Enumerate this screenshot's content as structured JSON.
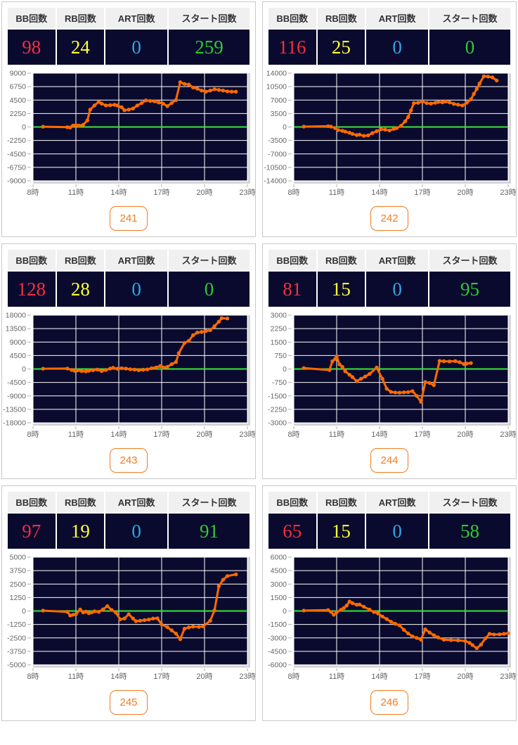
{
  "table_headers": {
    "bb": "BB回数",
    "rb": "RB回数",
    "art": "ART回数",
    "start": "スタート回数"
  },
  "colors": {
    "bb": "#f2303c",
    "rb": "#ffff35",
    "art": "#2ea7e8",
    "start": "#2ecc2e",
    "chart_bg": "#0a0a2e",
    "grid": "#ffffff",
    "zero_line": "#39e639",
    "series_line": "#ff6a00",
    "axis_text": "#666666",
    "badge": "#f47b20"
  },
  "panels": [
    {
      "machine": "241",
      "stats": {
        "bb": "98",
        "rb": "24",
        "art": "0",
        "start": "259"
      },
      "chart_data": {
        "type": "line",
        "title": "",
        "xlabel": "",
        "ylabel": "",
        "x_ticks": [
          "8時",
          "11時",
          "14時",
          "17時",
          "20時",
          "23時"
        ],
        "x_tick_values": [
          8,
          11,
          14,
          17,
          20,
          23
        ],
        "x_range": [
          8,
          23
        ],
        "ylim": [
          -9000,
          9000
        ],
        "y_step": 2250,
        "grid": true,
        "legend": "none",
        "points": [
          [
            8.7,
            50
          ],
          [
            10.4,
            -30
          ],
          [
            10.6,
            -80
          ],
          [
            10.8,
            250
          ],
          [
            11.0,
            300
          ],
          [
            11.2,
            250
          ],
          [
            11.5,
            350
          ],
          [
            11.8,
            1100
          ],
          [
            12.0,
            2900
          ],
          [
            12.3,
            3600
          ],
          [
            12.6,
            4200
          ],
          [
            12.8,
            3900
          ],
          [
            13.1,
            3600
          ],
          [
            13.4,
            3650
          ],
          [
            13.7,
            3700
          ],
          [
            13.9,
            3600
          ],
          [
            14.2,
            3300
          ],
          [
            14.4,
            2800
          ],
          [
            14.7,
            2900
          ],
          [
            15.0,
            3100
          ],
          [
            15.3,
            3600
          ],
          [
            15.6,
            4000
          ],
          [
            15.9,
            4450
          ],
          [
            16.2,
            4350
          ],
          [
            16.5,
            4300
          ],
          [
            16.8,
            4100
          ],
          [
            17.1,
            3900
          ],
          [
            17.4,
            3500
          ],
          [
            17.7,
            4000
          ],
          [
            18.0,
            4500
          ],
          [
            18.3,
            7500
          ],
          [
            18.6,
            7200
          ],
          [
            18.9,
            7100
          ],
          [
            19.2,
            6600
          ],
          [
            19.5,
            6400
          ],
          [
            19.8,
            6100
          ],
          [
            20.1,
            5900
          ],
          [
            20.4,
            6100
          ],
          [
            20.7,
            6300
          ],
          [
            21.0,
            6200
          ],
          [
            21.3,
            6100
          ],
          [
            21.6,
            5950
          ],
          [
            21.9,
            5900
          ],
          [
            22.2,
            5900
          ]
        ]
      }
    },
    {
      "machine": "242",
      "stats": {
        "bb": "116",
        "rb": "25",
        "art": "0",
        "start": "0"
      },
      "chart_data": {
        "type": "line",
        "title": "",
        "xlabel": "",
        "ylabel": "",
        "x_ticks": [
          "8時",
          "11時",
          "14時",
          "17時",
          "20時",
          "23時"
        ],
        "x_tick_values": [
          8,
          11,
          14,
          17,
          20,
          23
        ],
        "x_range": [
          8,
          23
        ],
        "ylim": [
          -14000,
          14000
        ],
        "y_step": 3500,
        "grid": true,
        "legend": "none",
        "points": [
          [
            8.7,
            100
          ],
          [
            10.4,
            200
          ],
          [
            10.6,
            100
          ],
          [
            10.9,
            -300
          ],
          [
            11.1,
            -800
          ],
          [
            11.4,
            -1000
          ],
          [
            11.6,
            -1200
          ],
          [
            11.9,
            -1500
          ],
          [
            12.1,
            -1800
          ],
          [
            12.4,
            -2100
          ],
          [
            12.6,
            -2000
          ],
          [
            12.9,
            -2300
          ],
          [
            13.2,
            -2200
          ],
          [
            13.5,
            -1600
          ],
          [
            13.8,
            -1100
          ],
          [
            14.1,
            -600
          ],
          [
            14.4,
            -700
          ],
          [
            14.7,
            -900
          ],
          [
            15.0,
            -500
          ],
          [
            15.2,
            -300
          ],
          [
            15.5,
            300
          ],
          [
            15.8,
            1500
          ],
          [
            16.0,
            2600
          ],
          [
            16.2,
            4300
          ],
          [
            16.4,
            6200
          ],
          [
            16.7,
            6300
          ],
          [
            17.0,
            6600
          ],
          [
            17.3,
            6200
          ],
          [
            17.6,
            6100
          ],
          [
            17.9,
            6300
          ],
          [
            18.1,
            6500
          ],
          [
            18.4,
            6400
          ],
          [
            18.6,
            6600
          ],
          [
            18.9,
            6400
          ],
          [
            19.2,
            6000
          ],
          [
            19.5,
            5800
          ],
          [
            19.8,
            5600
          ],
          [
            20.1,
            6300
          ],
          [
            20.4,
            7200
          ],
          [
            20.6,
            8600
          ],
          [
            20.8,
            9900
          ],
          [
            21.0,
            11300
          ],
          [
            21.3,
            13200
          ],
          [
            21.6,
            13100
          ],
          [
            21.9,
            12900
          ],
          [
            22.2,
            12100
          ]
        ]
      }
    },
    {
      "machine": "243",
      "stats": {
        "bb": "128",
        "rb": "28",
        "art": "0",
        "start": "0"
      },
      "chart_data": {
        "type": "line",
        "title": "",
        "xlabel": "",
        "ylabel": "",
        "x_ticks": [
          "8時",
          "11時",
          "14時",
          "17時",
          "20時",
          "23時"
        ],
        "x_tick_values": [
          8,
          11,
          14,
          17,
          20,
          23
        ],
        "x_range": [
          8,
          23
        ],
        "ylim": [
          -18000,
          18000
        ],
        "y_step": 4500,
        "grid": true,
        "legend": "none",
        "points": [
          [
            8.7,
            100
          ],
          [
            10.4,
            150
          ],
          [
            10.7,
            -300
          ],
          [
            10.9,
            -600
          ],
          [
            11.1,
            -500
          ],
          [
            11.4,
            -700
          ],
          [
            11.7,
            -800
          ],
          [
            11.9,
            -600
          ],
          [
            12.2,
            -400
          ],
          [
            12.5,
            -200
          ],
          [
            12.8,
            -700
          ],
          [
            13.1,
            -300
          ],
          [
            13.4,
            150
          ],
          [
            13.6,
            400
          ],
          [
            13.9,
            100
          ],
          [
            14.2,
            250
          ],
          [
            14.5,
            150
          ],
          [
            14.8,
            -100
          ],
          [
            15.1,
            -200
          ],
          [
            15.4,
            -400
          ],
          [
            15.7,
            -250
          ],
          [
            16.0,
            -150
          ],
          [
            16.3,
            250
          ],
          [
            16.6,
            500
          ],
          [
            16.9,
            1000
          ],
          [
            17.1,
            550
          ],
          [
            17.4,
            700
          ],
          [
            17.7,
            1600
          ],
          [
            18.0,
            2300
          ],
          [
            18.2,
            5300
          ],
          [
            18.6,
            8700
          ],
          [
            18.9,
            9400
          ],
          [
            19.2,
            11300
          ],
          [
            19.5,
            12200
          ],
          [
            19.8,
            12400
          ],
          [
            20.1,
            12700
          ],
          [
            20.4,
            13000
          ],
          [
            20.7,
            14300
          ],
          [
            21.0,
            15800
          ],
          [
            21.2,
            17000
          ],
          [
            21.6,
            16900
          ]
        ]
      }
    },
    {
      "machine": "244",
      "stats": {
        "bb": "81",
        "rb": "15",
        "art": "0",
        "start": "95"
      },
      "chart_data": {
        "type": "line",
        "title": "",
        "xlabel": "",
        "ylabel": "",
        "x_ticks": [
          "8時",
          "11時",
          "14時",
          "17時",
          "20時",
          "23時"
        ],
        "x_tick_values": [
          8,
          11,
          14,
          17,
          20,
          23
        ],
        "x_range": [
          8,
          23
        ],
        "ylim": [
          -3000,
          3000
        ],
        "y_step": 750,
        "grid": true,
        "legend": "none",
        "points": [
          [
            8.7,
            50
          ],
          [
            10.5,
            -60
          ],
          [
            10.7,
            430
          ],
          [
            10.9,
            560
          ],
          [
            11.0,
            700
          ],
          [
            11.2,
            250
          ],
          [
            11.4,
            120
          ],
          [
            11.6,
            -130
          ],
          [
            11.9,
            -320
          ],
          [
            12.1,
            -450
          ],
          [
            12.4,
            -680
          ],
          [
            12.7,
            -550
          ],
          [
            13.0,
            -420
          ],
          [
            13.3,
            -280
          ],
          [
            13.8,
            80
          ],
          [
            14.2,
            -550
          ],
          [
            14.5,
            -1100
          ],
          [
            14.8,
            -1280
          ],
          [
            15.1,
            -1310
          ],
          [
            15.4,
            -1320
          ],
          [
            15.7,
            -1300
          ],
          [
            16.0,
            -1290
          ],
          [
            16.3,
            -1230
          ],
          [
            16.6,
            -1500
          ],
          [
            16.9,
            -1830
          ],
          [
            17.2,
            -730
          ],
          [
            17.5,
            -780
          ],
          [
            17.8,
            -900
          ],
          [
            18.2,
            450
          ],
          [
            18.5,
            430
          ],
          [
            18.9,
            420
          ],
          [
            19.3,
            440
          ],
          [
            19.6,
            380
          ],
          [
            19.9,
            270
          ],
          [
            20.1,
            300
          ],
          [
            20.4,
            330
          ]
        ]
      }
    },
    {
      "machine": "245",
      "stats": {
        "bb": "97",
        "rb": "19",
        "art": "0",
        "start": "91"
      },
      "chart_data": {
        "type": "line",
        "title": "",
        "xlabel": "",
        "ylabel": "",
        "x_ticks": [
          "8時",
          "11時",
          "14時",
          "17時",
          "20時",
          "23時"
        ],
        "x_tick_values": [
          8,
          11,
          14,
          17,
          20,
          23
        ],
        "x_range": [
          8,
          23
        ],
        "ylim": [
          -5000,
          5000
        ],
        "y_step": 1250,
        "grid": true,
        "legend": "none",
        "points": [
          [
            8.7,
            30
          ],
          [
            10.4,
            -80
          ],
          [
            10.6,
            -420
          ],
          [
            10.8,
            -350
          ],
          [
            11.0,
            -300
          ],
          [
            11.3,
            140
          ],
          [
            11.5,
            -130
          ],
          [
            11.7,
            -60
          ],
          [
            11.9,
            -200
          ],
          [
            12.1,
            -130
          ],
          [
            12.3,
            -30
          ],
          [
            12.6,
            -80
          ],
          [
            12.9,
            150
          ],
          [
            13.2,
            450
          ],
          [
            13.5,
            100
          ],
          [
            13.8,
            -150
          ],
          [
            14.1,
            -780
          ],
          [
            14.4,
            -700
          ],
          [
            14.7,
            -300
          ],
          [
            15.0,
            -700
          ],
          [
            15.2,
            -950
          ],
          [
            15.5,
            -900
          ],
          [
            15.8,
            -850
          ],
          [
            16.1,
            -800
          ],
          [
            16.4,
            -700
          ],
          [
            16.7,
            -680
          ],
          [
            17.0,
            -1250
          ],
          [
            17.4,
            -1500
          ],
          [
            17.7,
            -1800
          ],
          [
            18.0,
            -2100
          ],
          [
            18.3,
            -2620
          ],
          [
            18.6,
            -1650
          ],
          [
            18.9,
            -1520
          ],
          [
            19.2,
            -1450
          ],
          [
            19.6,
            -1480
          ],
          [
            19.9,
            -1430
          ],
          [
            20.4,
            -900
          ],
          [
            20.7,
            60
          ],
          [
            21.0,
            2300
          ],
          [
            21.3,
            2900
          ],
          [
            21.6,
            3250
          ],
          [
            22.2,
            3400
          ]
        ]
      }
    },
    {
      "machine": "246",
      "stats": {
        "bb": "65",
        "rb": "15",
        "art": "0",
        "start": "58"
      },
      "chart_data": {
        "type": "line",
        "title": "",
        "xlabel": "",
        "ylabel": "",
        "x_ticks": [
          "8時",
          "11時",
          "14時",
          "17時",
          "20時",
          "23時"
        ],
        "x_tick_values": [
          8,
          11,
          14,
          17,
          20,
          23
        ],
        "x_range": [
          8,
          23
        ],
        "ylim": [
          -6000,
          6000
        ],
        "y_step": 1500,
        "grid": true,
        "legend": "none",
        "points": [
          [
            8.7,
            50
          ],
          [
            10.4,
            100
          ],
          [
            10.6,
            -100
          ],
          [
            10.8,
            -420
          ],
          [
            11.0,
            -150
          ],
          [
            11.3,
            130
          ],
          [
            11.5,
            330
          ],
          [
            11.7,
            600
          ],
          [
            11.9,
            1050
          ],
          [
            12.1,
            880
          ],
          [
            12.4,
            700
          ],
          [
            12.6,
            720
          ],
          [
            12.9,
            480
          ],
          [
            13.3,
            150
          ],
          [
            13.6,
            -120
          ],
          [
            13.9,
            -280
          ],
          [
            14.2,
            -620
          ],
          [
            14.5,
            -900
          ],
          [
            14.8,
            -1200
          ],
          [
            15.1,
            -1430
          ],
          [
            15.4,
            -1600
          ],
          [
            15.7,
            -2100
          ],
          [
            16.0,
            -2500
          ],
          [
            16.3,
            -2830
          ],
          [
            16.6,
            -3000
          ],
          [
            16.9,
            -3200
          ],
          [
            17.2,
            -2050
          ],
          [
            17.5,
            -2400
          ],
          [
            17.8,
            -2700
          ],
          [
            18.1,
            -2950
          ],
          [
            18.5,
            -3200
          ],
          [
            19.0,
            -3250
          ],
          [
            19.5,
            -3280
          ],
          [
            20.0,
            -3350
          ],
          [
            20.3,
            -3550
          ],
          [
            20.5,
            -3800
          ],
          [
            20.8,
            -4150
          ],
          [
            21.1,
            -3750
          ],
          [
            21.4,
            -3050
          ],
          [
            21.7,
            -2550
          ],
          [
            22.0,
            -2620
          ],
          [
            22.4,
            -2600
          ],
          [
            22.7,
            -2550
          ],
          [
            23.0,
            -2480
          ]
        ]
      }
    }
  ]
}
